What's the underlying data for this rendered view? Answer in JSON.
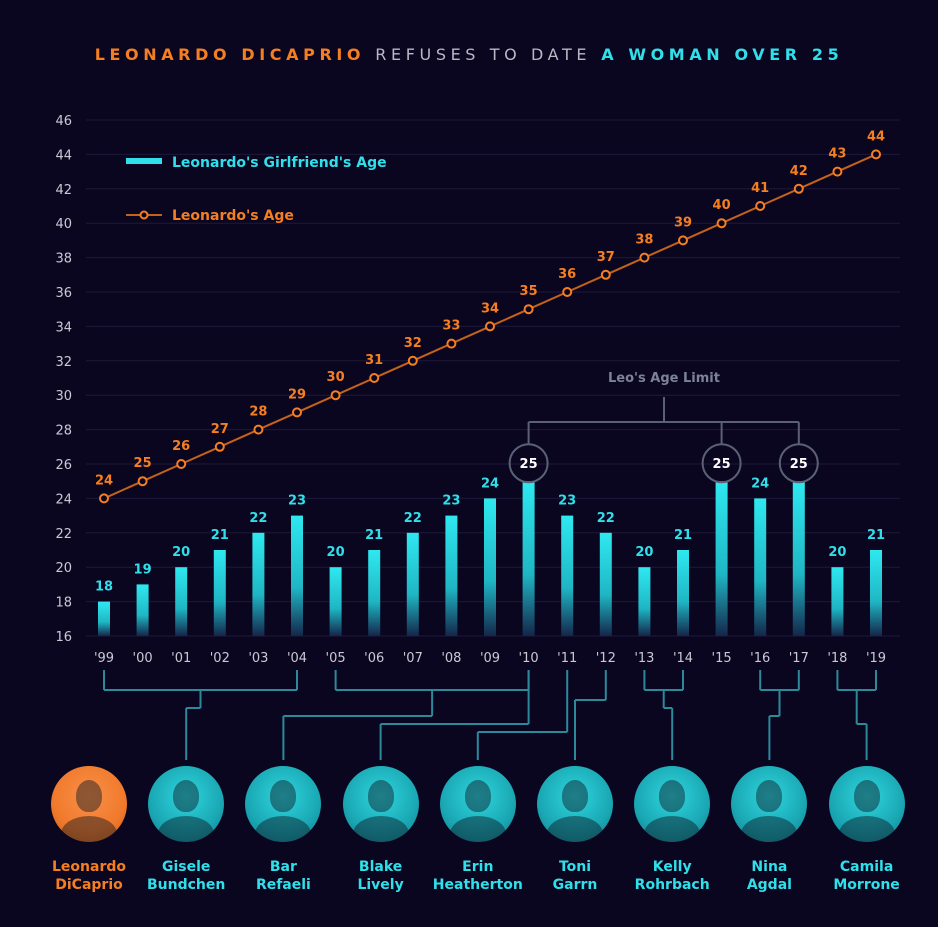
{
  "title": {
    "part1": "LEONARDO DICAPRIO",
    "part2": "REFUSES TO DATE",
    "part3": "A WOMAN OVER 25"
  },
  "colors": {
    "leo": "#f57f20",
    "girlfriend": "#2fe0ea",
    "limit": "#7c8398",
    "background": "#0b0620"
  },
  "legend": {
    "girlfriend": "Leonardo's Girlfriend's Age",
    "leo": "Leonardo's Age"
  },
  "limit_label": "Leo's Age Limit",
  "chart_data": {
    "type": "bar",
    "categories": [
      "'99",
      "'00",
      "'01",
      "'02",
      "'03",
      "'04",
      "'05",
      "'06",
      "'07",
      "'08",
      "'09",
      "'10",
      "'11",
      "'12",
      "'13",
      "'14",
      "'15",
      "'16",
      "'17",
      "'18",
      "'19"
    ],
    "series": [
      {
        "name": "Leonardo's Girlfriend's Age",
        "type": "bar",
        "values": [
          18,
          19,
          20,
          21,
          22,
          23,
          20,
          21,
          22,
          23,
          24,
          25,
          23,
          22,
          20,
          21,
          25,
          24,
          25,
          20,
          21
        ]
      },
      {
        "name": "Leonardo's Age",
        "type": "line",
        "values": [
          24,
          25,
          26,
          27,
          28,
          29,
          30,
          31,
          32,
          33,
          34,
          35,
          36,
          37,
          38,
          39,
          40,
          41,
          42,
          43,
          44
        ]
      }
    ],
    "yticks": [
      16,
      18,
      20,
      22,
      24,
      26,
      28,
      30,
      32,
      34,
      36,
      38,
      40,
      42,
      44,
      46
    ],
    "ylim": [
      16,
      46
    ],
    "grid": true,
    "legend_position": "top-left",
    "highlight_at_limit": [
      "'10",
      "'15",
      "'17"
    ]
  },
  "people": [
    {
      "name1": "Leonardo",
      "name2": "DiCaprio",
      "icon": "leonardo-dicaprio-photo"
    },
    {
      "name1": "Gisele",
      "name2": "Bundchen",
      "icon": "gisele-bundchen-photo",
      "years": [
        0,
        5
      ]
    },
    {
      "name1": "Bar",
      "name2": "Refaeli",
      "icon": "bar-refaeli-photo",
      "years": [
        6,
        11
      ]
    },
    {
      "name1": "Blake",
      "name2": "Lively",
      "icon": "blake-lively-photo",
      "years": [
        11,
        11
      ]
    },
    {
      "name1": "Erin",
      "name2": "Heatherton",
      "icon": "erin-heatherton-photo",
      "years": [
        12,
        12
      ]
    },
    {
      "name1": "Toni",
      "name2": "Garrn",
      "icon": "toni-garrn-photo",
      "years": [
        13,
        13
      ]
    },
    {
      "name1": "Kelly",
      "name2": "Rohrbach",
      "icon": "kelly-rohrbach-photo",
      "years": [
        14,
        15
      ]
    },
    {
      "name1": "Nina",
      "name2": "Agdal",
      "icon": "nina-agdal-photo",
      "years": [
        17,
        18
      ]
    },
    {
      "name1": "Camila",
      "name2": "Morrone",
      "icon": "camila-morrone-photo",
      "years": [
        19,
        20
      ]
    }
  ]
}
